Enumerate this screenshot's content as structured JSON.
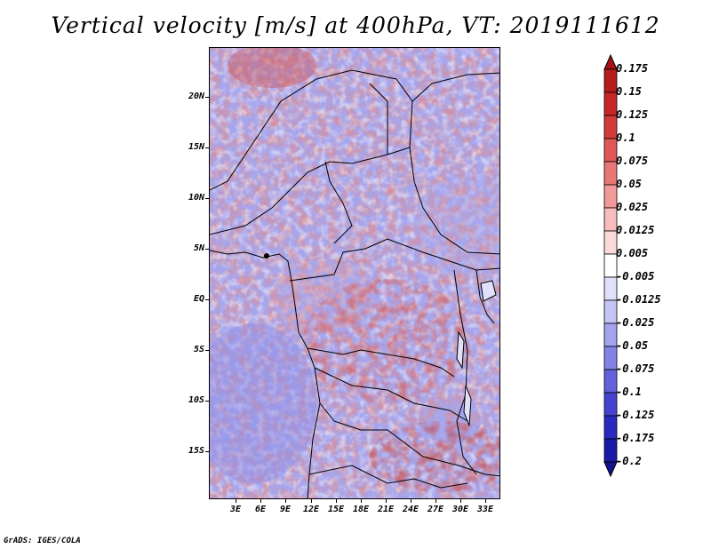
{
  "title": "Vertical velocity [m/s] at 400hPa, VT: 2019111612",
  "footer": "GrADS: IGES/COLA",
  "map": {
    "lat_labels": [
      "20N",
      "15N",
      "10N",
      "5N",
      "EQ",
      "5S",
      "10S",
      "15S"
    ],
    "lon_labels": [
      "3E",
      "6E",
      "9E",
      "12E",
      "15E",
      "18E",
      "21E",
      "24E",
      "27E",
      "30E",
      "33E"
    ],
    "field": "vertical velocity at 400hPa",
    "colors": {
      "positive_strong": "#a50f15",
      "positive_weak": "#fcd0d0",
      "negative_weak": "#d6d6f8",
      "negative_strong": "#1c1ca8",
      "coastline": "#000000"
    }
  },
  "colorbar": {
    "levels": [
      "0.175",
      "0.15",
      "0.125",
      "0.1",
      "0.075",
      "0.05",
      "0.025",
      "0.0125",
      "0.005",
      "-0.005",
      "-0.0125",
      "-0.025",
      "-0.05",
      "-0.075",
      "-0.1",
      "-0.125",
      "-0.175",
      "-0.2"
    ],
    "colors": [
      "#a50f15",
      "#b51c1c",
      "#c62828",
      "#d33b3b",
      "#e05757",
      "#ea7777",
      "#f29a9a",
      "#f7bcbc",
      "#fbdada",
      "#ffffff",
      "#e0e0fa",
      "#c4c4f5",
      "#a3a3ee",
      "#8383e6",
      "#6262dc",
      "#4343cf",
      "#2a2abf",
      "#1a1aa8",
      "#12128f"
    ]
  }
}
